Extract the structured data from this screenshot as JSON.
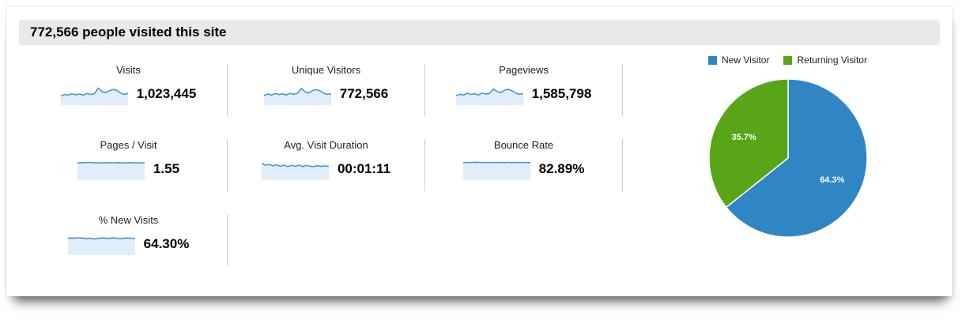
{
  "header": {
    "title": "772,566 people visited this site"
  },
  "metrics": [
    {
      "label": "Visits",
      "value": "1,023,445",
      "spark": [
        0.42,
        0.5,
        0.46,
        0.54,
        0.48,
        0.52,
        0.46,
        0.55,
        0.5,
        0.54,
        0.85,
        0.66,
        0.6,
        0.7,
        0.78,
        0.72,
        0.58,
        0.5,
        0.55
      ]
    },
    {
      "label": "Unique Visitors",
      "value": "772,566",
      "spark": [
        0.44,
        0.52,
        0.47,
        0.55,
        0.49,
        0.53,
        0.47,
        0.56,
        0.51,
        0.56,
        0.83,
        0.64,
        0.58,
        0.72,
        0.76,
        0.7,
        0.56,
        0.5,
        0.54
      ]
    },
    {
      "label": "Pageviews",
      "value": "1,585,798",
      "spark": [
        0.43,
        0.51,
        0.46,
        0.56,
        0.5,
        0.54,
        0.47,
        0.57,
        0.52,
        0.55,
        0.8,
        0.65,
        0.6,
        0.74,
        0.78,
        0.7,
        0.57,
        0.51,
        0.55
      ]
    },
    {
      "label": "Pages / Visit",
      "value": "1.55",
      "spark": [
        0.86,
        0.88,
        0.87,
        0.89,
        0.87,
        0.88,
        0.86,
        0.87,
        0.88,
        0.86,
        0.87,
        0.88,
        0.87,
        0.86,
        0.88,
        0.87,
        0.86,
        0.87,
        0.87
      ]
    },
    {
      "label": "Avg. Visit Duration",
      "value": "00:01:11",
      "spark": [
        0.84,
        0.74,
        0.78,
        0.7,
        0.76,
        0.68,
        0.74,
        0.66,
        0.72,
        0.68,
        0.74,
        0.66,
        0.72,
        0.68,
        0.66,
        0.71,
        0.67,
        0.7,
        0.68
      ]
    },
    {
      "label": "Bounce Rate",
      "value": "82.89%",
      "spark": [
        0.88,
        0.89,
        0.88,
        0.9,
        0.89,
        0.88,
        0.89,
        0.88,
        0.89,
        0.88,
        0.89,
        0.88,
        0.89,
        0.88,
        0.89,
        0.88,
        0.89,
        0.88,
        0.88
      ]
    },
    {
      "label": "% New Visits",
      "value": "64.30%",
      "spark": [
        0.84,
        0.86,
        0.85,
        0.87,
        0.85,
        0.83,
        0.85,
        0.81,
        0.84,
        0.86,
        0.85,
        0.84,
        0.86,
        0.85,
        0.83,
        0.85,
        0.86,
        0.84,
        0.85
      ]
    }
  ],
  "pie": {
    "slices": [
      {
        "label": "New Visitor",
        "pct": 64.3,
        "display": "64.3%",
        "color": "#2f86c3"
      },
      {
        "label": "Returning Visitor",
        "pct": 35.7,
        "display": "35.7%",
        "color": "#58a618"
      }
    ]
  },
  "colors": {
    "spark_line": "#4e96cc",
    "spark_fill": "#e1eef9",
    "header_bg": "#e9e9e9",
    "divider": "#cccccc",
    "pie_label_text": "#ffffff"
  },
  "chart_data": [
    {
      "type": "pie",
      "labels": [
        "New Visitor",
        "Returning Visitor"
      ],
      "values": [
        64.3,
        35.7
      ],
      "data_labels": [
        "64.3%",
        "35.7%"
      ],
      "colors": [
        "#2f86c3",
        "#58a618"
      ],
      "legend_position": "top",
      "start_angle_deg_from_top": 0,
      "direction": "clockwise"
    },
    {
      "type": "line",
      "title": "Metric sparklines (unlabeled mini trends, normalized 0-1)",
      "series": [
        {
          "name": "Visits",
          "summary_value": 1023445,
          "values_normalized": [
            0.42,
            0.5,
            0.46,
            0.54,
            0.48,
            0.52,
            0.46,
            0.55,
            0.5,
            0.54,
            0.85,
            0.66,
            0.6,
            0.7,
            0.78,
            0.72,
            0.58,
            0.5,
            0.55
          ]
        },
        {
          "name": "Unique Visitors",
          "summary_value": 772566,
          "values_normalized": [
            0.44,
            0.52,
            0.47,
            0.55,
            0.49,
            0.53,
            0.47,
            0.56,
            0.51,
            0.56,
            0.83,
            0.64,
            0.58,
            0.72,
            0.76,
            0.7,
            0.56,
            0.5,
            0.54
          ]
        },
        {
          "name": "Pageviews",
          "summary_value": 1585798,
          "values_normalized": [
            0.43,
            0.51,
            0.46,
            0.56,
            0.5,
            0.54,
            0.47,
            0.57,
            0.52,
            0.55,
            0.8,
            0.65,
            0.6,
            0.74,
            0.78,
            0.7,
            0.57,
            0.51,
            0.55
          ]
        },
        {
          "name": "Pages / Visit",
          "summary_value": 1.55,
          "values_normalized": [
            0.86,
            0.88,
            0.87,
            0.89,
            0.87,
            0.88,
            0.86,
            0.87,
            0.88,
            0.86,
            0.87,
            0.88,
            0.87,
            0.86,
            0.88,
            0.87,
            0.86,
            0.87,
            0.87
          ]
        },
        {
          "name": "Avg. Visit Duration",
          "summary_value": "00:01:11",
          "values_normalized": [
            0.84,
            0.74,
            0.78,
            0.7,
            0.76,
            0.68,
            0.74,
            0.66,
            0.72,
            0.68,
            0.74,
            0.66,
            0.72,
            0.68,
            0.66,
            0.71,
            0.67,
            0.7,
            0.68
          ]
        },
        {
          "name": "Bounce Rate",
          "summary_value": "82.89%",
          "values_normalized": [
            0.88,
            0.89,
            0.88,
            0.9,
            0.89,
            0.88,
            0.89,
            0.88,
            0.89,
            0.88,
            0.89,
            0.88,
            0.89,
            0.88,
            0.89,
            0.88,
            0.89,
            0.88,
            0.88
          ]
        },
        {
          "name": "% New Visits",
          "summary_value": "64.30%",
          "values_normalized": [
            0.84,
            0.86,
            0.85,
            0.87,
            0.85,
            0.83,
            0.85,
            0.81,
            0.84,
            0.86,
            0.85,
            0.84,
            0.86,
            0.85,
            0.83,
            0.85,
            0.86,
            0.84,
            0.85
          ]
        }
      ]
    }
  ]
}
